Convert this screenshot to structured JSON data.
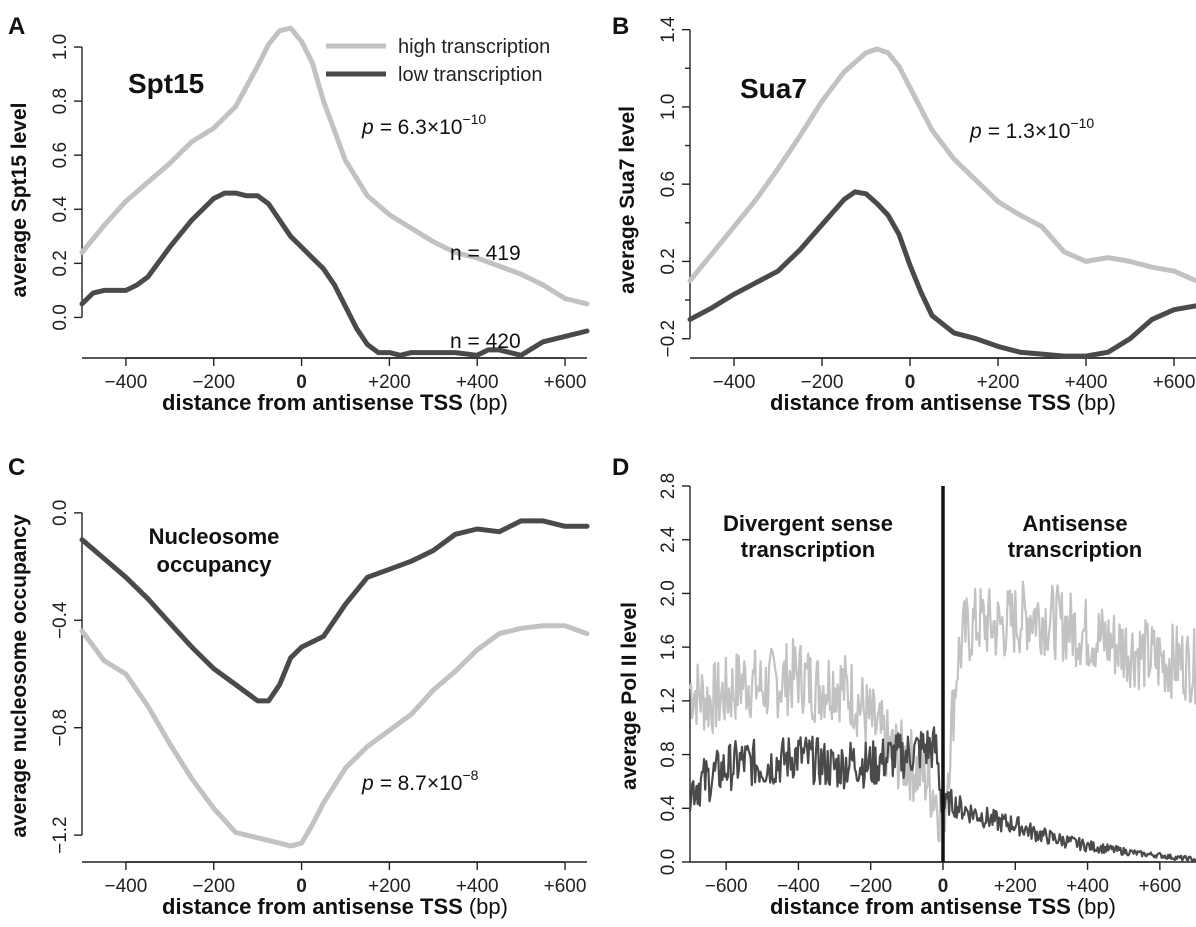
{
  "colors": {
    "high": "#c2c2c2",
    "low": "#4a4a4a",
    "divider": "#111111"
  },
  "legend": {
    "high": "high transcription",
    "low": "low transcription"
  },
  "chart_data": [
    {
      "panel": "A",
      "type": "line",
      "title": "Spt15",
      "ylabel": "average Spt15 level",
      "xlabel_bold": "distance from antisense TSS",
      "xlabel_unit": "(bp)",
      "xlim": [
        -500,
        650
      ],
      "ylim": [
        -0.15,
        1.1
      ],
      "xticks": [
        -400,
        -200,
        0,
        200,
        400,
        600
      ],
      "xtick_labels": [
        "−400",
        "−200",
        "0",
        "+200",
        "+400",
        "+600"
      ],
      "yticks": [
        0.0,
        0.2,
        0.4,
        0.6,
        0.8,
        1.0
      ],
      "ytick_labels": [
        "0.0",
        "0.2",
        "0.4",
        "0.6",
        "0.8",
        "1.0"
      ],
      "p_prefix": "p = ",
      "p_value": "6.3×10",
      "p_exp": "−10",
      "n_high": "n = 419",
      "n_low": "n = 420",
      "series": [
        {
          "name": "high transcription",
          "key": "high",
          "x": [
            -500,
            -450,
            -400,
            -350,
            -300,
            -250,
            -200,
            -150,
            -100,
            -75,
            -50,
            -25,
            0,
            25,
            50,
            100,
            150,
            200,
            250,
            300,
            350,
            400,
            450,
            500,
            550,
            600,
            650
          ],
          "y": [
            0.24,
            0.34,
            0.43,
            0.5,
            0.57,
            0.65,
            0.7,
            0.78,
            0.93,
            1.01,
            1.06,
            1.07,
            1.02,
            0.94,
            0.8,
            0.58,
            0.45,
            0.38,
            0.33,
            0.28,
            0.24,
            0.22,
            0.19,
            0.16,
            0.12,
            0.07,
            0.05
          ]
        },
        {
          "name": "low transcription",
          "key": "low",
          "x": [
            -500,
            -475,
            -450,
            -425,
            -400,
            -375,
            -350,
            -300,
            -250,
            -200,
            -175,
            -150,
            -125,
            -100,
            -75,
            -50,
            -25,
            0,
            25,
            50,
            75,
            100,
            125,
            150,
            175,
            200,
            225,
            250,
            300,
            350,
            400,
            425,
            450,
            500,
            550,
            600,
            650
          ],
          "y": [
            0.05,
            0.09,
            0.1,
            0.1,
            0.1,
            0.12,
            0.15,
            0.26,
            0.36,
            0.44,
            0.46,
            0.46,
            0.45,
            0.45,
            0.42,
            0.36,
            0.3,
            0.26,
            0.22,
            0.18,
            0.12,
            0.04,
            -0.04,
            -0.1,
            -0.13,
            -0.13,
            -0.14,
            -0.13,
            -0.13,
            -0.13,
            -0.14,
            -0.12,
            -0.12,
            -0.14,
            -0.09,
            -0.07,
            -0.05
          ]
        }
      ]
    },
    {
      "panel": "B",
      "type": "line",
      "title": "Sua7",
      "ylabel": "average Sua7 level",
      "xlabel_bold": "distance from antisense TSS",
      "xlabel_unit": "(bp)",
      "xlim": [
        -500,
        650
      ],
      "ylim": [
        -0.3,
        1.45
      ],
      "xticks": [
        -400,
        -200,
        0,
        200,
        400,
        600
      ],
      "xtick_labels": [
        "−400",
        "−200",
        "0",
        "+200",
        "+400",
        "+600"
      ],
      "yticks": [
        -0.2,
        0.2,
        0.6,
        1.0,
        1.4
      ],
      "ytick_labels": [
        "−0.2",
        "0.2",
        "0.6",
        "1.0",
        "1.4"
      ],
      "p_prefix": "p = ",
      "p_value": "1.3×10",
      "p_exp": "−10",
      "series": [
        {
          "name": "high transcription",
          "key": "high",
          "x": [
            -500,
            -450,
            -400,
            -350,
            -300,
            -250,
            -200,
            -150,
            -100,
            -75,
            -50,
            -25,
            0,
            50,
            100,
            150,
            200,
            250,
            300,
            350,
            400,
            450,
            500,
            550,
            600,
            650
          ],
          "y": [
            0.1,
            0.24,
            0.38,
            0.52,
            0.68,
            0.85,
            1.03,
            1.18,
            1.28,
            1.3,
            1.28,
            1.21,
            1.1,
            0.88,
            0.73,
            0.62,
            0.51,
            0.44,
            0.38,
            0.25,
            0.2,
            0.22,
            0.2,
            0.17,
            0.15,
            0.1
          ]
        },
        {
          "name": "low transcription",
          "key": "low",
          "x": [
            -500,
            -450,
            -400,
            -350,
            -300,
            -250,
            -200,
            -150,
            -125,
            -100,
            -75,
            -50,
            -25,
            0,
            25,
            50,
            100,
            150,
            200,
            250,
            300,
            350,
            400,
            450,
            500,
            550,
            600,
            650
          ],
          "y": [
            -0.1,
            -0.04,
            0.03,
            0.09,
            0.15,
            0.26,
            0.39,
            0.52,
            0.56,
            0.55,
            0.5,
            0.44,
            0.34,
            0.18,
            0.04,
            -0.08,
            -0.17,
            -0.2,
            -0.24,
            -0.27,
            -0.28,
            -0.29,
            -0.29,
            -0.27,
            -0.2,
            -0.1,
            -0.05,
            -0.03
          ]
        }
      ]
    },
    {
      "panel": "C",
      "type": "line",
      "title_line1": "Nucleosome",
      "title_line2": "occupancy",
      "ylabel": "average nucleosome occupancy",
      "xlabel_bold": "distance from antisense TSS",
      "xlabel_unit": "(bp)",
      "xlim": [
        -500,
        650
      ],
      "ylim": [
        -1.3,
        0.1
      ],
      "xticks": [
        -400,
        -200,
        0,
        200,
        400,
        600
      ],
      "xtick_labels": [
        "−400",
        "−200",
        "0",
        "+200",
        "+400",
        "+600"
      ],
      "yticks": [
        -1.2,
        -0.8,
        -0.4,
        0.0
      ],
      "ytick_labels": [
        "−1.2",
        "−0.8",
        "−0.4",
        "0.0"
      ],
      "p_prefix": "p = ",
      "p_value": "8.7×10",
      "p_exp": "−8",
      "series": [
        {
          "name": "high transcription",
          "key": "high",
          "x": [
            -500,
            -450,
            -400,
            -350,
            -300,
            -250,
            -200,
            -150,
            -100,
            -50,
            -25,
            0,
            25,
            50,
            100,
            150,
            200,
            250,
            300,
            350,
            400,
            450,
            500,
            550,
            600,
            650
          ],
          "y": [
            -0.44,
            -0.55,
            -0.6,
            -0.72,
            -0.86,
            -0.99,
            -1.1,
            -1.19,
            -1.21,
            -1.23,
            -1.24,
            -1.23,
            -1.16,
            -1.08,
            -0.95,
            -0.87,
            -0.81,
            -0.75,
            -0.66,
            -0.59,
            -0.51,
            -0.45,
            -0.43,
            -0.42,
            -0.42,
            -0.45
          ]
        },
        {
          "name": "low transcription",
          "key": "low",
          "x": [
            -500,
            -450,
            -400,
            -350,
            -300,
            -250,
            -200,
            -150,
            -100,
            -75,
            -50,
            -25,
            0,
            25,
            50,
            100,
            150,
            200,
            250,
            300,
            350,
            400,
            450,
            500,
            550,
            600,
            650
          ],
          "y": [
            -0.1,
            -0.17,
            -0.24,
            -0.32,
            -0.41,
            -0.5,
            -0.58,
            -0.64,
            -0.7,
            -0.7,
            -0.64,
            -0.54,
            -0.5,
            -0.48,
            -0.46,
            -0.34,
            -0.24,
            -0.21,
            -0.18,
            -0.14,
            -0.08,
            -0.06,
            -0.07,
            -0.03,
            -0.03,
            -0.05,
            -0.05
          ]
        }
      ]
    },
    {
      "panel": "D",
      "type": "line",
      "title_left_line1": "Divergent sense",
      "title_left_line2": "transcription",
      "title_right_line1": "Antisense",
      "title_right_line2": "transcription",
      "ylabel": "average Pol II level",
      "xlabel_bold": "distance from antisense TSS",
      "xlabel_unit": "(bp)",
      "xlim": [
        -700,
        700
      ],
      "ylim": [
        0,
        2.8
      ],
      "xticks": [
        -600,
        -400,
        -200,
        0,
        200,
        400,
        600
      ],
      "xtick_labels": [
        "−600",
        "−400",
        "−200",
        "0",
        "+200",
        "+400",
        "+600"
      ],
      "yticks": [
        0.0,
        0.4,
        0.8,
        1.2,
        1.6,
        2.0,
        2.4,
        2.8
      ],
      "ytick_labels": [
        "0.0",
        "0.4",
        "0.8",
        "1.2",
        "1.6",
        "2.0",
        "2.4",
        "2.8"
      ],
      "series": [
        {
          "name": "high transcription",
          "key": "high",
          "x": [
            -700,
            -650,
            -600,
            -550,
            -500,
            -450,
            -400,
            -350,
            -300,
            -250,
            -200,
            -150,
            -100,
            -50,
            -20,
            0,
            20,
            40,
            60,
            80,
            100,
            150,
            200,
            250,
            300,
            350,
            400,
            450,
            500,
            550,
            600,
            650,
            700
          ],
          "y": [
            1.3,
            1.2,
            1.25,
            1.35,
            1.3,
            1.35,
            1.4,
            1.3,
            1.35,
            1.25,
            1.05,
            0.85,
            0.75,
            0.65,
            0.5,
            0.3,
            0.9,
            1.5,
            1.7,
            1.75,
            1.8,
            1.75,
            1.8,
            1.85,
            1.8,
            1.75,
            1.7,
            1.65,
            1.6,
            1.55,
            1.5,
            1.5,
            1.45
          ]
        },
        {
          "name": "low transcription",
          "key": "low",
          "x": [
            -700,
            -650,
            -600,
            -550,
            -500,
            -450,
            -400,
            -350,
            -300,
            -250,
            -200,
            -150,
            -100,
            -50,
            -20,
            0,
            20,
            50,
            100,
            150,
            200,
            250,
            300,
            350,
            400,
            450,
            500,
            550,
            600,
            650,
            700
          ],
          "y": [
            0.55,
            0.62,
            0.7,
            0.75,
            0.72,
            0.75,
            0.8,
            0.75,
            0.7,
            0.75,
            0.72,
            0.78,
            0.8,
            0.85,
            0.85,
            0.4,
            0.45,
            0.4,
            0.35,
            0.3,
            0.28,
            0.22,
            0.18,
            0.15,
            0.12,
            0.1,
            0.08,
            0.06,
            0.05,
            0.03,
            0.02
          ]
        }
      ]
    }
  ]
}
